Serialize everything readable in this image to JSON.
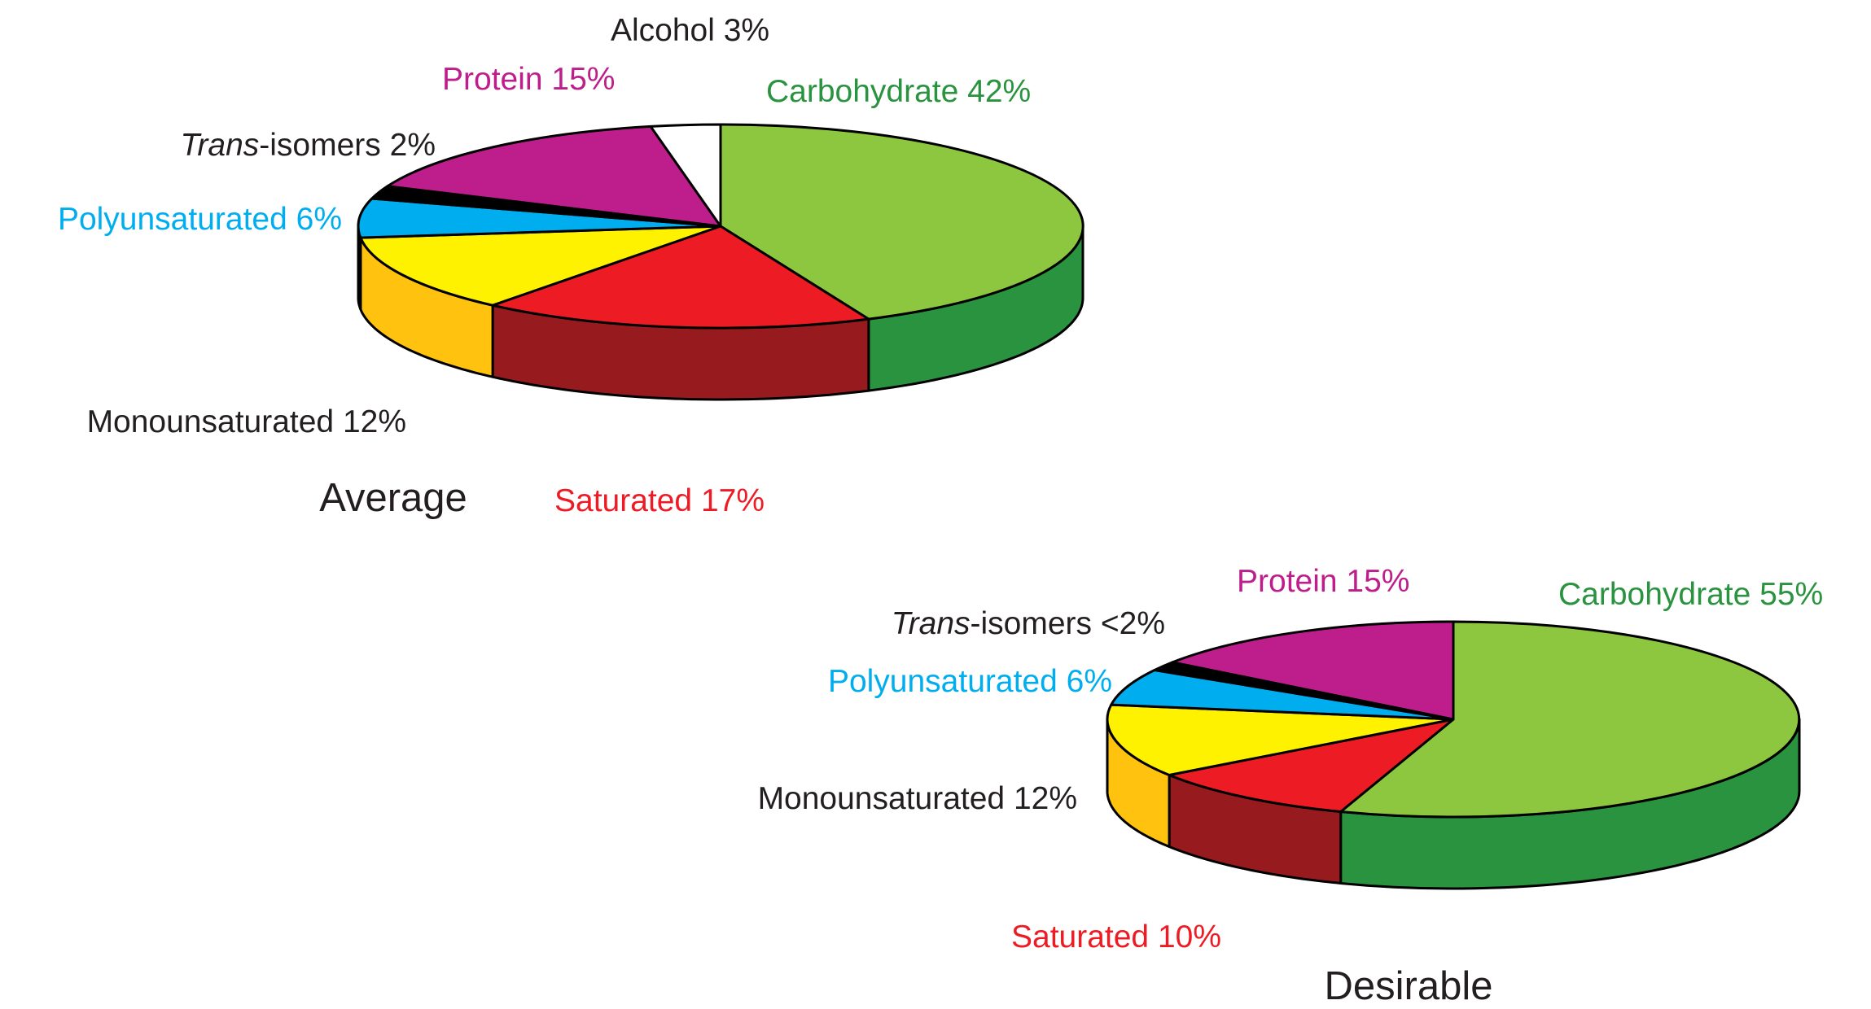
{
  "chart_data": [
    {
      "type": "pie",
      "style": "3d",
      "title": "Average",
      "start": "12 o'clock",
      "direction": "clockwise",
      "slices": [
        {
          "id": "carbohydrate",
          "label": "Carbohydrate 42%",
          "value": 42,
          "top_color": "#8dc63f",
          "side_color": "#2a933f",
          "label_color": "#2a933f"
        },
        {
          "id": "saturated",
          "label": "Saturated 17%",
          "value": 17,
          "top_color": "#ed1c24",
          "side_color": "#971b1e",
          "label_color": "#ed1c24"
        },
        {
          "id": "monounsaturated",
          "label": "Monounsaturated 12%",
          "value": 12,
          "top_color": "#fff200",
          "side_color": "#ffc20e",
          "label_color": "#231f20"
        },
        {
          "id": "polyunsaturated",
          "label": "Polyunsaturated 6%",
          "value": 6,
          "top_color": "#00aeef",
          "side_color": "#0072bc",
          "label_color": "#00aeef"
        },
        {
          "id": "trans",
          "label_prefix": "Trans",
          "label_suffix": "-isomers 2%",
          "value": 2,
          "top_color": "#000000",
          "side_color": "#000000",
          "label_color": "#231f20"
        },
        {
          "id": "protein",
          "label": "Protein 15%",
          "value": 15,
          "top_color": "#be1e8c",
          "side_color": "#8b1565",
          "label_color": "#be1e8c"
        },
        {
          "id": "alcohol",
          "label": "Alcohol 3%",
          "value": 3,
          "top_color": "#ffffff",
          "side_color": "#ffffff",
          "label_color": "#231f20"
        }
      ]
    },
    {
      "type": "pie",
      "style": "3d",
      "title": "Desirable",
      "start": "12 o'clock",
      "direction": "clockwise",
      "slices": [
        {
          "id": "carbohydrate",
          "label": "Carbohydrate 55%",
          "value": 55,
          "top_color": "#8dc63f",
          "side_color": "#2a933f",
          "label_color": "#2a933f"
        },
        {
          "id": "saturated",
          "label": "Saturated 10%",
          "value": 10,
          "top_color": "#ed1c24",
          "side_color": "#971b1e",
          "label_color": "#ed1c24"
        },
        {
          "id": "monounsaturated",
          "label": "Monounsaturated 12%",
          "value": 12,
          "top_color": "#fff200",
          "side_color": "#ffc20e",
          "label_color": "#231f20"
        },
        {
          "id": "polyunsaturated",
          "label": "Polyunsaturated 6%",
          "value": 6,
          "top_color": "#00aeef",
          "side_color": "#0072bc",
          "label_color": "#00aeef"
        },
        {
          "id": "trans",
          "label_prefix": "Trans",
          "label_suffix": "-isomers <2%",
          "value": 1.5,
          "top_color": "#000000",
          "side_color": "#000000",
          "label_color": "#231f20"
        },
        {
          "id": "protein",
          "label": "Protein 15%",
          "value": 15,
          "top_color": "#be1e8c",
          "side_color": "#8b1565",
          "label_color": "#be1e8c"
        }
      ]
    }
  ]
}
